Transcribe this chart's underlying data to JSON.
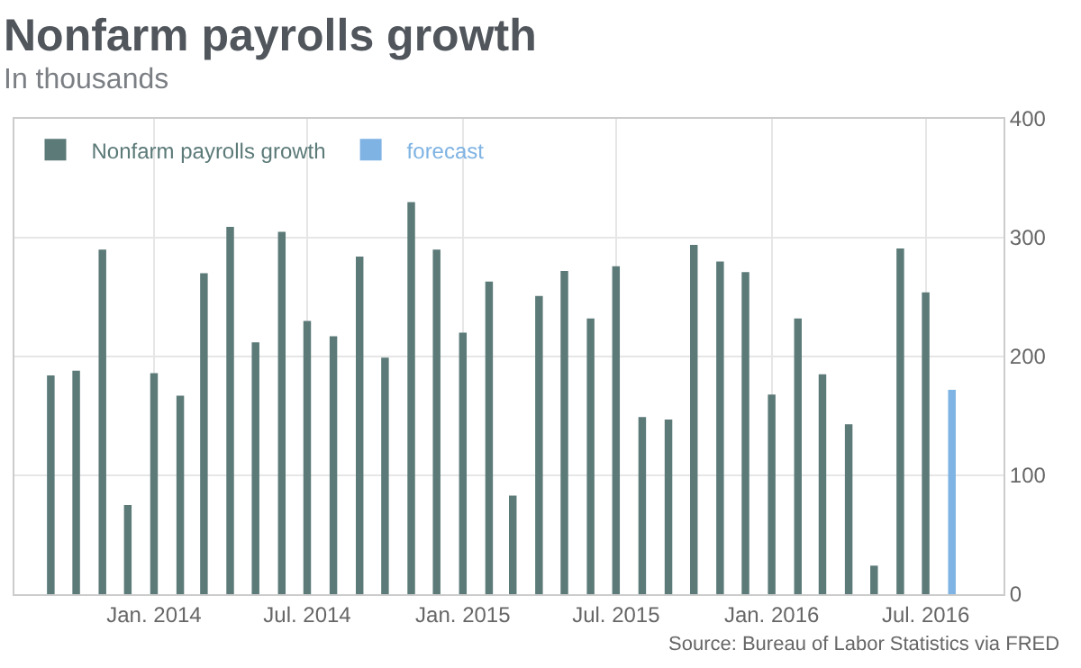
{
  "chart_data": {
    "type": "bar",
    "title": "Nonfarm payrolls growth",
    "subtitle": "In thousands",
    "annotations": [
      "Source: Bureau of Labor Statistics via FRED"
    ],
    "series": [
      {
        "name": "Nonfarm payrolls growth",
        "color": "#5b7a78",
        "x": [
          "2013-09",
          "2013-10",
          "2013-11",
          "2013-12",
          "2014-01",
          "2014-02",
          "2014-03",
          "2014-04",
          "2014-05",
          "2014-06",
          "2014-07",
          "2014-08",
          "2014-09",
          "2014-10",
          "2014-11",
          "2014-12",
          "2015-01",
          "2015-02",
          "2015-03",
          "2015-04",
          "2015-05",
          "2015-06",
          "2015-07",
          "2015-08",
          "2015-09",
          "2015-10",
          "2015-11",
          "2015-12",
          "2016-01",
          "2016-02",
          "2016-03",
          "2016-04",
          "2016-05",
          "2016-06",
          "2016-07"
        ],
        "values": [
          184,
          188,
          290,
          75,
          186,
          167,
          270,
          309,
          212,
          305,
          230,
          217,
          284,
          199,
          330,
          290,
          220,
          263,
          83,
          251,
          272,
          232,
          276,
          149,
          147,
          294,
          280,
          271,
          168,
          232,
          185,
          143,
          24,
          291,
          254
        ]
      },
      {
        "name": "forecast",
        "color": "#7eb3e3",
        "x": [
          "2016-08"
        ],
        "values": [
          172
        ]
      }
    ],
    "xlim": [
      "2013-07-20",
      "2016-10-01"
    ],
    "xticks": [
      {
        "value": "2014-01",
        "label": "Jan. 2014"
      },
      {
        "value": "2014-07",
        "label": "Jul. 2014"
      },
      {
        "value": "2015-01",
        "label": "Jan. 2015"
      },
      {
        "value": "2015-07",
        "label": "Jul. 2015"
      },
      {
        "value": "2016-01",
        "label": "Jan. 2016"
      },
      {
        "value": "2016-07",
        "label": "Jul. 2016"
      }
    ],
    "ylim": [
      0,
      400
    ],
    "yticks": [
      0,
      100,
      200,
      300,
      400
    ],
    "grid": true,
    "legend": "top left"
  }
}
